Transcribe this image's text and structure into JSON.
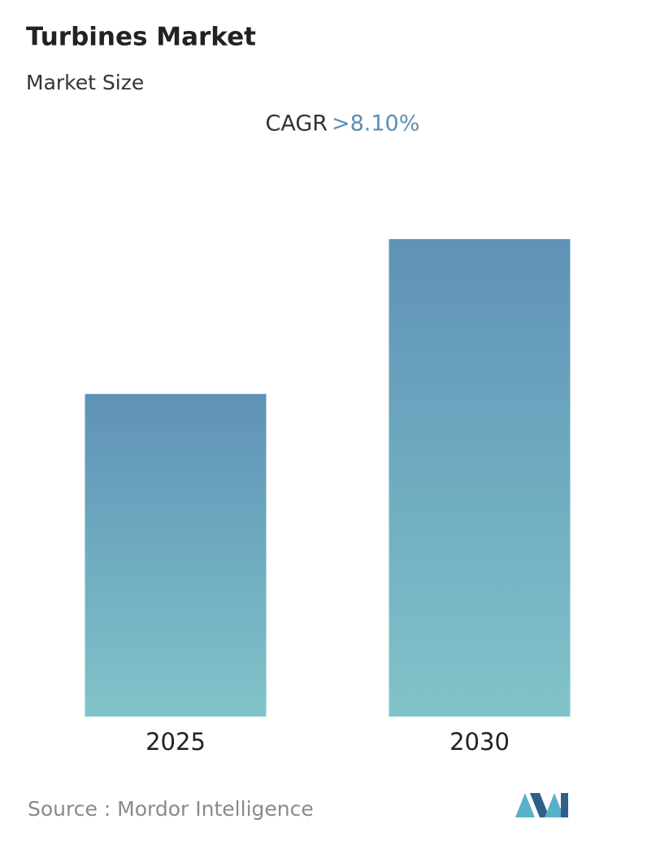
{
  "chart_data": {
    "type": "bar",
    "title": "Turbines Market",
    "subtitle": "Market Size",
    "cagr_label": "CAGR",
    "cagr_value": ">8.10%",
    "categories": [
      "2025",
      "2030"
    ],
    "values": [
      1,
      1.48
    ],
    "color_top": "#5f92b7",
    "color_bottom": "#80c4c9",
    "source": "Source :  Mordor Intelligence"
  }
}
